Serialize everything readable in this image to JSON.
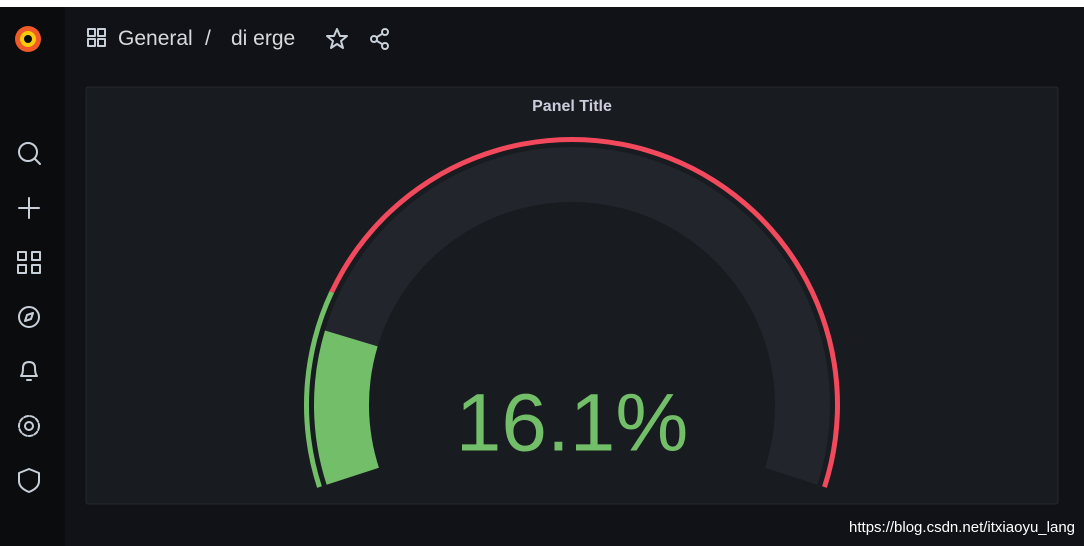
{
  "breadcrumb": {
    "folder": "General",
    "separator": "/",
    "dashboard": "di erge"
  },
  "chart_data": {
    "type": "gauge",
    "title": "Panel Title",
    "values": [
      16.1
    ],
    "value_labels": [
      "16.1%"
    ],
    "ylim": [
      0,
      100
    ],
    "color": "#73bf69",
    "thresholds": [
      {
        "value": 20,
        "color": "#f2495c"
      }
    ]
  },
  "watermark": "https://blog.csdn.net/itxiaoyu_lang"
}
